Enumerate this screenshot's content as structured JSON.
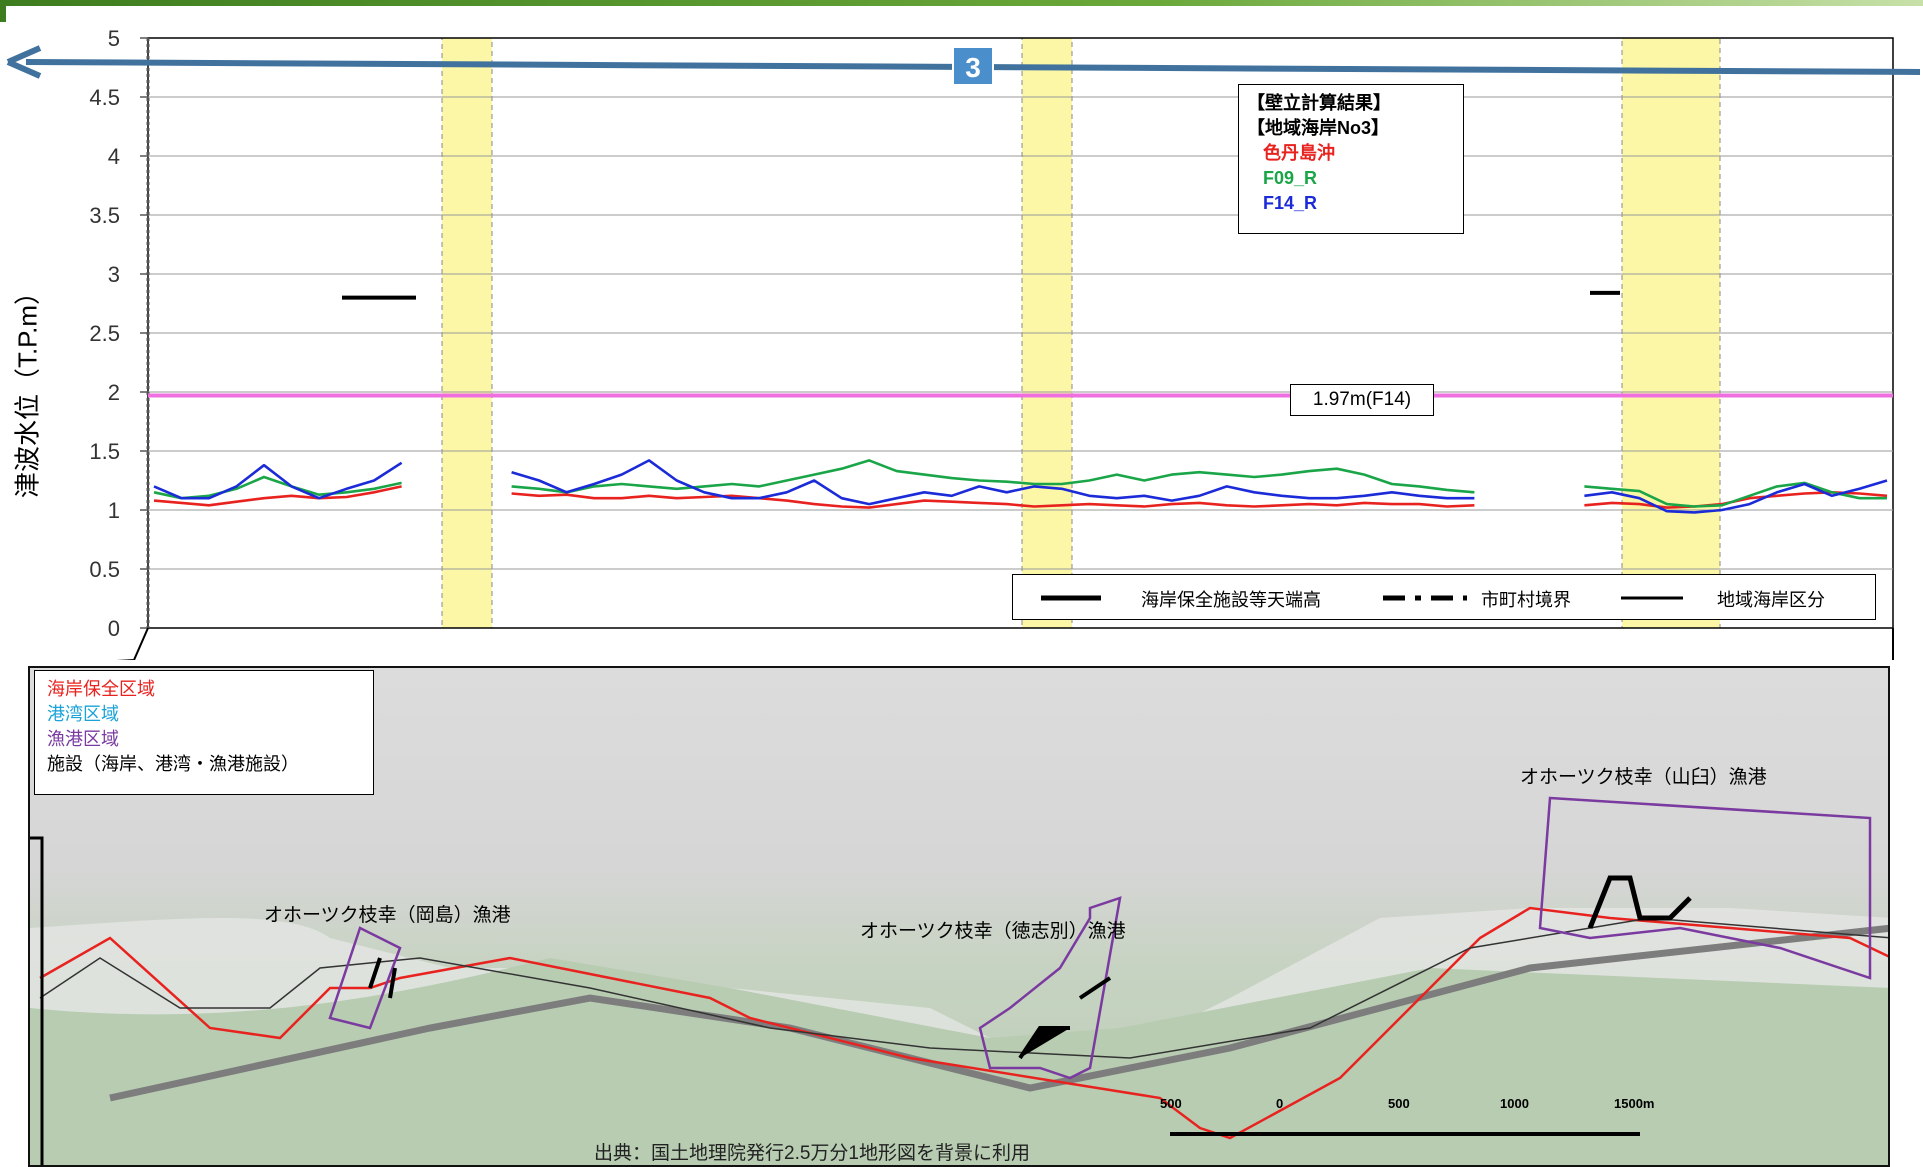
{
  "chart_data": {
    "type": "line",
    "ylabel": "津波水位（T.P.m）",
    "ylim": [
      0,
      5
    ],
    "yticks": [
      "0",
      "0.5",
      "1",
      "1.5",
      "2",
      "2.5",
      "3",
      "3.5",
      "4",
      "4.5",
      "5"
    ],
    "grid": true,
    "legend_title_1": "【壁立計算結果】",
    "legend_title_2": "【地域海岸No3】",
    "series": [
      {
        "name": "色丹島沖",
        "color": "#e8231f",
        "values": [
          1.08,
          1.06,
          1.04,
          1.07,
          1.1,
          1.12,
          1.1,
          1.11,
          1.15,
          1.2,
          null,
          null,
          null,
          1.14,
          1.12,
          1.13,
          1.1,
          1.1,
          1.12,
          1.1,
          1.11,
          1.12,
          1.1,
          1.08,
          1.05,
          1.03,
          1.02,
          1.05,
          1.08,
          1.07,
          1.06,
          1.05,
          1.03,
          1.04,
          1.05,
          1.04,
          1.03,
          1.05,
          1.06,
          1.04,
          1.03,
          1.04,
          1.05,
          1.04,
          1.06,
          1.05,
          1.05,
          1.03,
          1.04,
          null,
          null,
          null,
          1.04,
          1.06,
          1.05,
          1.02,
          1.03,
          1.05,
          1.1,
          1.12,
          1.14,
          1.15,
          1.14,
          1.12
        ]
      },
      {
        "name": "F09_R",
        "color": "#1aa648",
        "values": [
          1.15,
          1.1,
          1.12,
          1.18,
          1.28,
          1.2,
          1.13,
          1.15,
          1.18,
          1.23,
          null,
          null,
          null,
          1.2,
          1.18,
          1.15,
          1.2,
          1.22,
          1.2,
          1.18,
          1.2,
          1.22,
          1.2,
          1.25,
          1.3,
          1.35,
          1.42,
          1.33,
          1.3,
          1.27,
          1.25,
          1.24,
          1.22,
          1.22,
          1.25,
          1.3,
          1.25,
          1.3,
          1.32,
          1.3,
          1.28,
          1.3,
          1.33,
          1.35,
          1.3,
          1.22,
          1.2,
          1.17,
          1.15,
          null,
          null,
          null,
          1.2,
          1.18,
          1.16,
          1.05,
          1.03,
          1.04,
          1.12,
          1.2,
          1.23,
          1.15,
          1.1,
          1.1
        ]
      },
      {
        "name": "F14_R",
        "color": "#1b2bd8",
        "values": [
          1.2,
          1.1,
          1.1,
          1.2,
          1.38,
          1.2,
          1.1,
          1.18,
          1.25,
          1.4,
          null,
          null,
          null,
          1.32,
          1.25,
          1.15,
          1.22,
          1.3,
          1.42,
          1.25,
          1.15,
          1.1,
          1.1,
          1.15,
          1.25,
          1.1,
          1.05,
          1.1,
          1.15,
          1.12,
          1.2,
          1.15,
          1.2,
          1.18,
          1.12,
          1.1,
          1.12,
          1.08,
          1.12,
          1.2,
          1.15,
          1.12,
          1.1,
          1.1,
          1.12,
          1.15,
          1.12,
          1.1,
          1.1,
          null,
          null,
          null,
          1.12,
          1.15,
          1.1,
          0.99,
          0.98,
          1.0,
          1.05,
          1.15,
          1.22,
          1.12,
          1.18,
          1.25
        ]
      }
    ],
    "facility_crests": [
      {
        "label": "",
        "value": 2.8
      },
      {
        "label": "",
        "value": 2.84
      }
    ],
    "reference_line": {
      "value": 1.97,
      "label": "1.97m(F14)",
      "color": "#ef6fe0"
    }
  },
  "section_marker": "3",
  "bottom_legend": {
    "item1": "海岸保全施設等天端高",
    "item2": "市町村境界",
    "item3": "地域海岸区分"
  },
  "map": {
    "legend": {
      "coast": "海岸保全区域",
      "port": "港湾区域",
      "fishing": "漁港区域",
      "facility": "施設（海岸、港湾・漁港施設）"
    },
    "colors": {
      "coast": "#e8231f",
      "port": "#1aa3d8",
      "fishing": "#7a3aa0"
    },
    "labels": {
      "okajima": "オホーツク枝幸（岡島）漁港",
      "tokushibetsu": "オホーツク枝幸（徳志別）漁港",
      "yamaguchi": "オホーツク枝幸（山臼）漁港"
    },
    "scale": [
      "500",
      "0",
      "500",
      "1000",
      "1500m"
    ],
    "credit": "出典：国土地理院発行2.5万分1地形図を背景に利用"
  }
}
